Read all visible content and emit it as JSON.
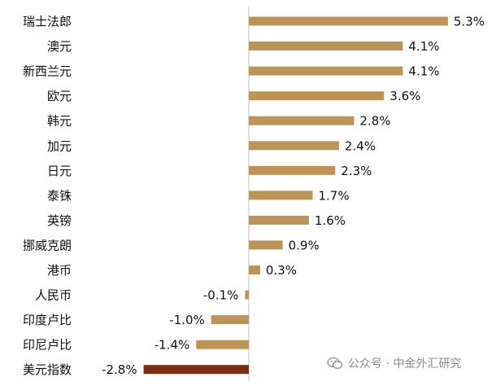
{
  "chart_data": {
    "type": "bar",
    "orientation": "horizontal",
    "categories": [
      "瑞士法郎",
      "澳元",
      "新西兰元",
      "欧元",
      "韩元",
      "加元",
      "日元",
      "泰铢",
      "英镑",
      "挪威克朗",
      "港币",
      "人民币",
      "印度卢比",
      "印尼卢比",
      "美元指数"
    ],
    "values": [
      5.3,
      4.1,
      4.1,
      3.6,
      2.8,
      2.4,
      2.3,
      1.7,
      1.6,
      0.9,
      0.3,
      -0.1,
      -1.0,
      -1.4,
      -2.8
    ],
    "value_labels": [
      "5.3%",
      "4.1%",
      "4.1%",
      "3.6%",
      "2.8%",
      "2.4%",
      "2.3%",
      "1.7%",
      "1.6%",
      "0.9%",
      "0.3%",
      "-0.1%",
      "-1.0%",
      "-1.4%",
      "-2.8%"
    ],
    "title": "",
    "xlabel": "",
    "ylabel": "",
    "grid": false,
    "legend": "none",
    "colors": {
      "default": "#bd9457",
      "highlight": "#7a2e14",
      "axis": "#bfbfbf"
    },
    "highlight_category": "美元指数"
  },
  "watermark": {
    "text": "公众号 · 中金外汇研究",
    "icon": "wechat-icon"
  }
}
